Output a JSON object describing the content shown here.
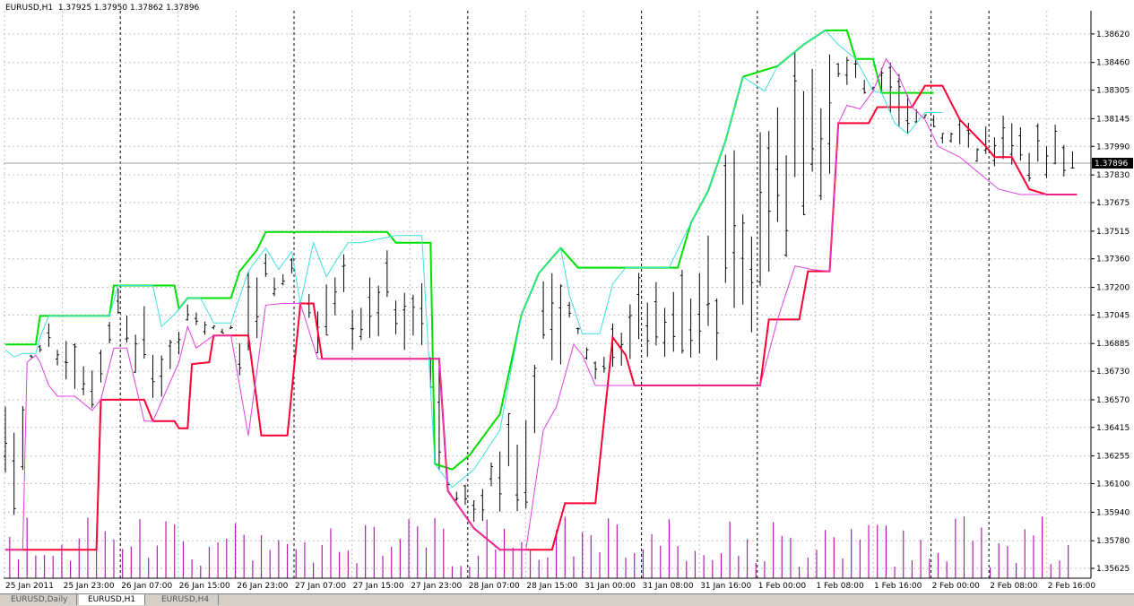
{
  "window": {
    "title": "EURUSD,H1  1.37925 1.37950 1.37862 1.37896"
  },
  "tabs": [
    {
      "label": "EURUSD,Daily",
      "active": false
    },
    {
      "label": "EURUSD,H1",
      "active": true
    },
    {
      "label": "EURUSD,H4",
      "active": false
    }
  ],
  "colors": {
    "upper_channel": "#00e000",
    "lower_channel": "#ff0033",
    "upper_fast": "#40e0e0",
    "lower_fast": "#e040e0",
    "volume": "#b020b0",
    "bars": "#000000",
    "grid": "#c0c0c0"
  },
  "chart_data": {
    "type": "line",
    "symbol": "EURUSD",
    "timeframe": "H1",
    "current_price": "1.37896",
    "y_ticks": [
      "1.38620",
      "1.38460",
      "1.38305",
      "1.38145",
      "1.37990",
      "1.37830",
      "1.37675",
      "1.37515",
      "1.37360",
      "1.37200",
      "1.37045",
      "1.36885",
      "1.36730",
      "1.36570",
      "1.36415",
      "1.36255",
      "1.36100",
      "1.35940",
      "1.35780",
      "1.35625"
    ],
    "y_tick_values": [
      1.3862,
      1.3846,
      1.38305,
      1.38145,
      1.3799,
      1.3783,
      1.37675,
      1.37515,
      1.3736,
      1.372,
      1.37045,
      1.36885,
      1.3673,
      1.3657,
      1.36415,
      1.36255,
      1.361,
      1.3594,
      1.3578,
      1.35625
    ],
    "ylim": [
      1.3557,
      1.3875
    ],
    "x_ticks": [
      "25 Jan 2011",
      "25 Jan 23:00",
      "26 Jan 07:00",
      "26 Jan 15:00",
      "26 Jan 23:00",
      "27 Jan 07:00",
      "27 Jan 15:00",
      "27 Jan 23:00",
      "28 Jan 07:00",
      "28 Jan 15:00",
      "31 Jan 00:00",
      "31 Jan 08:00",
      "31 Jan 16:00",
      "1 Feb 00:00",
      "1 Feb 08:00",
      "1 Feb 16:00",
      "2 Feb 00:00",
      "2 Feb 08:00",
      "2 Feb 16:00"
    ],
    "bar_count": 120,
    "series": [
      {
        "name": "upper_channel",
        "points": [
          [
            0,
            1.3688
          ],
          [
            7,
            1.3688
          ],
          [
            8,
            1.3704
          ],
          [
            24,
            1.3704
          ],
          [
            25,
            1.3721
          ],
          [
            39,
            1.3721
          ],
          [
            40,
            1.3708
          ],
          [
            42,
            1.3714
          ],
          [
            52,
            1.3714
          ],
          [
            54,
            1.3729
          ],
          [
            58,
            1.3741
          ],
          [
            60,
            1.3751
          ],
          [
            64,
            1.3751
          ],
          [
            88,
            1.3751
          ],
          [
            90,
            1.3745
          ],
          [
            98,
            1.3745
          ],
          [
            99,
            1.3621
          ],
          [
            103,
            1.3618
          ],
          [
            107,
            1.3626
          ],
          [
            114,
            1.3649
          ],
          [
            119,
            1.3705
          ],
          [
            123,
            1.3728
          ],
          [
            128,
            1.3742
          ],
          [
            132,
            1.3731
          ],
          [
            155,
            1.3731
          ],
          [
            158,
            1.3756
          ],
          [
            162,
            1.3774
          ],
          [
            166,
            1.3802
          ],
          [
            170,
            1.3838
          ],
          [
            178,
            1.3844
          ],
          [
            184,
            1.3856
          ],
          [
            189,
            1.3864
          ],
          [
            194,
            1.3864
          ],
          [
            196,
            1.3848
          ],
          [
            200,
            1.3848
          ],
          [
            202,
            1.3829
          ],
          [
            214,
            1.3829
          ]
        ]
      },
      {
        "name": "lower_channel",
        "points": [
          [
            0,
            1.3573
          ],
          [
            21,
            1.3573
          ],
          [
            22,
            1.3657
          ],
          [
            32,
            1.3657
          ],
          [
            34,
            1.3645
          ],
          [
            39,
            1.3645
          ],
          [
            40,
            1.3641
          ],
          [
            42,
            1.3641
          ],
          [
            43,
            1.3677
          ],
          [
            47,
            1.3678
          ],
          [
            48,
            1.3693
          ],
          [
            56,
            1.3693
          ],
          [
            59,
            1.3637
          ],
          [
            65,
            1.3637
          ],
          [
            68,
            1.3711
          ],
          [
            71,
            1.3711
          ],
          [
            73,
            1.368
          ],
          [
            100,
            1.368
          ],
          [
            102,
            1.3606
          ],
          [
            108,
            1.3585
          ],
          [
            114,
            1.3573
          ],
          [
            126,
            1.3573
          ],
          [
            129,
            1.3599
          ],
          [
            136,
            1.3599
          ],
          [
            140,
            1.3692
          ],
          [
            143,
            1.3682
          ],
          [
            145,
            1.3665
          ],
          [
            174,
            1.3665
          ],
          [
            176,
            1.3702
          ],
          [
            183,
            1.3702
          ],
          [
            185,
            1.3729
          ],
          [
            190,
            1.3729
          ],
          [
            192,
            1.3812
          ],
          [
            199,
            1.3812
          ],
          [
            201,
            1.3821
          ],
          [
            209,
            1.3821
          ],
          [
            212,
            1.3833
          ],
          [
            216,
            1.3833
          ],
          [
            220,
            1.3814
          ],
          [
            226,
            1.3799
          ],
          [
            228,
            1.3793
          ],
          [
            232,
            1.3793
          ],
          [
            236,
            1.3775
          ],
          [
            240,
            1.3772
          ],
          [
            247,
            1.3772
          ]
        ]
      },
      {
        "name": "upper_fast",
        "points": [
          [
            0,
            1.3685
          ],
          [
            2,
            1.3681
          ],
          [
            4,
            1.3683
          ],
          [
            6,
            1.3683
          ],
          [
            7,
            1.3683
          ],
          [
            8,
            1.3692
          ],
          [
            10,
            1.3704
          ],
          [
            24,
            1.3704
          ],
          [
            26,
            1.3721
          ],
          [
            34,
            1.3721
          ],
          [
            36,
            1.3698
          ],
          [
            39,
            1.3705
          ],
          [
            42,
            1.3714
          ],
          [
            45,
            1.3714
          ],
          [
            48,
            1.37
          ],
          [
            52,
            1.37
          ],
          [
            56,
            1.3729
          ],
          [
            60,
            1.3742
          ],
          [
            63,
            1.373
          ],
          [
            66,
            1.374
          ],
          [
            68,
            1.3711
          ],
          [
            71,
            1.3745
          ],
          [
            74,
            1.3726
          ],
          [
            76,
            1.3734
          ],
          [
            79,
            1.3745
          ],
          [
            82,
            1.3745
          ],
          [
            90,
            1.3749
          ],
          [
            96,
            1.3749
          ],
          [
            99,
            1.3621
          ],
          [
            103,
            1.3608
          ],
          [
            108,
            1.3618
          ],
          [
            114,
            1.364
          ],
          [
            119,
            1.3705
          ],
          [
            123,
            1.3728
          ],
          [
            128,
            1.3742
          ],
          [
            130,
            1.3716
          ],
          [
            133,
            1.3694
          ],
          [
            137,
            1.3694
          ],
          [
            140,
            1.3722
          ],
          [
            143,
            1.3731
          ],
          [
            153,
            1.3731
          ],
          [
            158,
            1.3756
          ],
          [
            162,
            1.3774
          ],
          [
            166,
            1.3802
          ],
          [
            170,
            1.3838
          ],
          [
            175,
            1.383
          ],
          [
            178,
            1.3844
          ],
          [
            184,
            1.3856
          ],
          [
            189,
            1.3864
          ],
          [
            192,
            1.3856
          ],
          [
            196,
            1.3848
          ],
          [
            200,
            1.383
          ],
          [
            202,
            1.3829
          ],
          [
            205,
            1.3812
          ],
          [
            208,
            1.3806
          ],
          [
            212,
            1.3818
          ],
          [
            216,
            1.3818
          ]
        ]
      },
      {
        "name": "lower_fast",
        "points": [
          [
            0,
            1.3573
          ],
          [
            4,
            1.3573
          ],
          [
            5,
            1.3678
          ],
          [
            7,
            1.3682
          ],
          [
            8,
            1.3678
          ],
          [
            10,
            1.3665
          ],
          [
            12,
            1.3659
          ],
          [
            16,
            1.3659
          ],
          [
            20,
            1.3651
          ],
          [
            22,
            1.3657
          ],
          [
            25,
            1.3686
          ],
          [
            28,
            1.3686
          ],
          [
            32,
            1.3645
          ],
          [
            34,
            1.3645
          ],
          [
            40,
            1.3678
          ],
          [
            42,
            1.3698
          ],
          [
            44,
            1.3686
          ],
          [
            48,
            1.3693
          ],
          [
            52,
            1.3693
          ],
          [
            56,
            1.3637
          ],
          [
            60,
            1.371
          ],
          [
            64,
            1.3711
          ],
          [
            68,
            1.3711
          ],
          [
            72,
            1.368
          ],
          [
            100,
            1.368
          ],
          [
            102,
            1.3606
          ],
          [
            108,
            1.3585
          ],
          [
            114,
            1.3573
          ],
          [
            120,
            1.3573
          ],
          [
            124,
            1.364
          ],
          [
            127,
            1.3653
          ],
          [
            131,
            1.3688
          ],
          [
            133,
            1.3682
          ],
          [
            136,
            1.3665
          ],
          [
            174,
            1.3665
          ],
          [
            178,
            1.3702
          ],
          [
            182,
            1.3732
          ],
          [
            186,
            1.373
          ],
          [
            190,
            1.3729
          ],
          [
            192,
            1.3812
          ],
          [
            194,
            1.3822
          ],
          [
            197,
            1.382
          ],
          [
            200,
            1.383
          ],
          [
            203,
            1.3848
          ],
          [
            206,
            1.3838
          ],
          [
            209,
            1.3821
          ],
          [
            212,
            1.3814
          ],
          [
            215,
            1.3799
          ],
          [
            220,
            1.3793
          ],
          [
            224,
            1.3785
          ],
          [
            229,
            1.3775
          ],
          [
            234,
            1.3772
          ],
          [
            247,
            1.3772
          ]
        ]
      }
    ]
  }
}
